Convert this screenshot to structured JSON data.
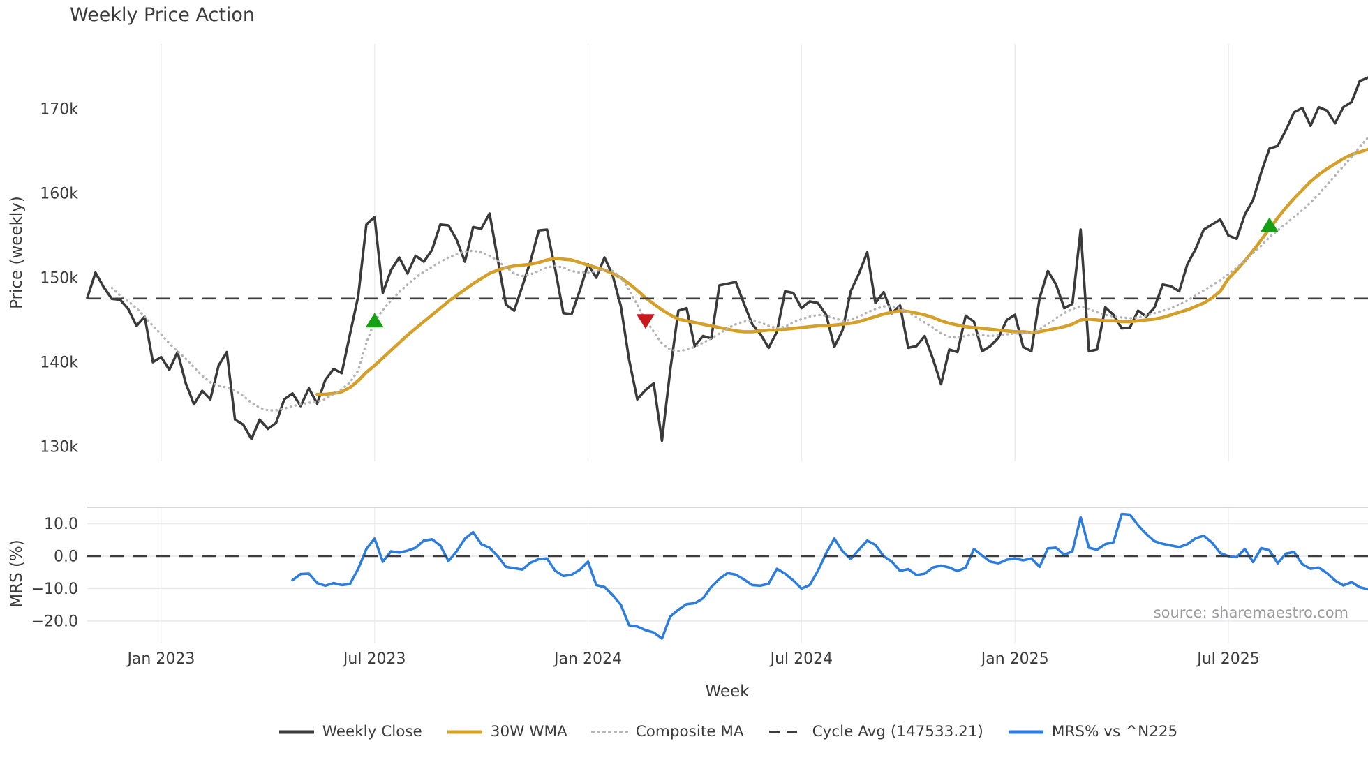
{
  "title": "Weekly Price Action",
  "source_note": "source: sharemaestro.com",
  "axes": {
    "price_label": "Price (weekly)",
    "mrs_label": "MRS (%)",
    "x_label": "Week",
    "price_tick_labels": [
      "170k",
      "160k",
      "150k",
      "140k",
      "130k"
    ],
    "price_tick_values": [
      170000,
      160000,
      150000,
      140000,
      130000
    ],
    "mrs_tick_labels": [
      "10.0",
      "0.0",
      "−10.0",
      "−20.0"
    ],
    "mrs_tick_values": [
      10,
      0,
      -10,
      -20
    ],
    "x_tick_labels": [
      "Jan 2023",
      "Jul 2023",
      "Jan 2024",
      "Jul 2024",
      "Jan 2025",
      "Jul 2025"
    ],
    "x_tick_week_indices": [
      9,
      35,
      61,
      87,
      113,
      139
    ]
  },
  "legend": [
    {
      "label": "Weekly Close",
      "color": "#3a3a3a",
      "style": "solid"
    },
    {
      "label": "30W WMA",
      "color": "#d4a02a",
      "style": "solid"
    },
    {
      "label": "Composite MA",
      "color": "#b4b4b4",
      "style": "dotted"
    },
    {
      "label": "Cycle Avg (147533.21)",
      "color": "#3d3d3d",
      "style": "dashed"
    },
    {
      "label": "MRS% vs ^N225",
      "color": "#2d7dde",
      "style": "solid"
    }
  ],
  "colors": {
    "weekly_close": "#3a3a3a",
    "wma30": "#d4a02a",
    "composite": "#b4b4b4",
    "cycle_avg": "#3d3d3d",
    "mrs": "#2d7dde",
    "buy_marker": "#16a016",
    "sell_marker": "#c8191c",
    "gridline": "#ededf2",
    "mrs_hgrid": "#e9e9ee",
    "mrs_top_border": "#c8c8cc",
    "tick_text": "#3b3b3b"
  },
  "chart_data": {
    "type": "line",
    "title": "Weekly Price Action",
    "xlabel": "Week",
    "x_unit": "week",
    "x_start_date": "2022-10-31",
    "x_step_days": 7,
    "n_weeks": 157,
    "x_tick_week_indices": [
      9,
      35,
      61,
      87,
      113,
      139
    ],
    "x_tick_labels": [
      "Jan 2023",
      "Jul 2023",
      "Jan 2024",
      "Jul 2024",
      "Jan 2025",
      "Jul 2025"
    ],
    "panels": [
      {
        "id": "price",
        "ylabel": "Price (weekly)",
        "ylim": [
          128300,
          177700
        ],
        "yticks": [
          130000,
          140000,
          150000,
          160000,
          170000
        ],
        "grid": "vertical-only"
      },
      {
        "id": "mrs",
        "ylabel": "MRS (%)",
        "ylim": [
          -27,
          15
        ],
        "yticks": [
          -20,
          -10,
          0,
          10
        ],
        "grid": "horizontal-and-vertical"
      }
    ],
    "series": [
      {
        "name": "Weekly Close",
        "panel": "price",
        "style": "solid",
        "color": "#3a3a3a",
        "start_index": 0,
        "values": [
          147600,
          150600,
          148900,
          147500,
          147400,
          146300,
          144300,
          145400,
          140000,
          140600,
          139100,
          141200,
          137500,
          135000,
          136600,
          135600,
          139600,
          141200,
          133200,
          132600,
          130900,
          133200,
          132100,
          132800,
          135600,
          136300,
          134800,
          136900,
          135100,
          137900,
          139200,
          138700,
          143300,
          147800,
          156300,
          157200,
          148200,
          150900,
          152400,
          150500,
          152600,
          151900,
          153300,
          156300,
          156200,
          154500,
          151900,
          156000,
          155800,
          157600,
          152200,
          146800,
          146100,
          149000,
          152000,
          155600,
          155700,
          151000,
          145800,
          145700,
          148500,
          151600,
          150000,
          152400,
          150300,
          146600,
          140300,
          135600,
          136700,
          137500,
          130700,
          139000,
          146100,
          146400,
          141900,
          143100,
          142800,
          149100,
          149300,
          149500,
          146900,
          144500,
          143300,
          141700,
          143600,
          148400,
          148200,
          146400,
          147200,
          147000,
          145600,
          141800,
          143800,
          148400,
          150500,
          153000,
          147000,
          148300,
          145800,
          146700,
          141700,
          141900,
          143100,
          140400,
          137400,
          141500,
          141200,
          145500,
          144800,
          141300,
          141900,
          142900,
          145000,
          145600,
          141800,
          141300,
          147600,
          150800,
          149200,
          146400,
          146900,
          155700,
          141300,
          141500,
          146500,
          145600,
          144000,
          144100,
          146100,
          145400,
          146500,
          149200,
          149000,
          148400,
          151600,
          153400,
          155700,
          156300,
          156900,
          155000,
          154600,
          157500,
          159200,
          162500,
          165300,
          165600,
          167500,
          169600,
          170100,
          168000,
          170200,
          169800,
          168300,
          170200,
          170800,
          173300,
          173700
        ]
      },
      {
        "name": "30W WMA",
        "panel": "price",
        "style": "solid",
        "color": "#d4a02a",
        "start_index": 28,
        "values": [
          136200,
          136200,
          136300,
          136500,
          137000,
          137800,
          138800,
          139600,
          140500,
          141400,
          142300,
          143200,
          144000,
          144800,
          145600,
          146400,
          147200,
          147900,
          148600,
          149300,
          149900,
          150500,
          150900,
          151200,
          151400,
          151500,
          151600,
          151800,
          152100,
          152300,
          152200,
          152100,
          151800,
          151500,
          151200,
          150900,
          150500,
          150000,
          149300,
          148500,
          147600,
          146900,
          146200,
          145600,
          145100,
          144900,
          144700,
          144500,
          144300,
          144100,
          143900,
          143700,
          143600,
          143600,
          143700,
          143800,
          143800,
          143900,
          144000,
          144100,
          144200,
          144300,
          144300,
          144400,
          144500,
          144600,
          144800,
          145100,
          145400,
          145700,
          145900,
          146100,
          146000,
          145800,
          145600,
          145300,
          144900,
          144600,
          144400,
          144200,
          144100,
          144000,
          143900,
          143800,
          143700,
          143600,
          143600,
          143500,
          143600,
          143800,
          144000,
          144200,
          144500,
          145000,
          145100,
          145000,
          144900,
          144900,
          144800,
          144800,
          144900,
          145000,
          145100,
          145300,
          145600,
          145900,
          146200,
          146600,
          147000,
          147600,
          148400,
          149900,
          150900,
          152000,
          153200,
          154500,
          155800,
          157100,
          158300,
          159400,
          160400,
          161400,
          162200,
          162900,
          163500,
          164100,
          164600,
          164900,
          165200
        ]
      },
      {
        "name": "Composite MA",
        "panel": "price",
        "style": "dotted",
        "color": "#b4b4b4",
        "start_index": 3,
        "values": [
          148800,
          147900,
          147200,
          146400,
          145400,
          144300,
          143300,
          142200,
          141300,
          140400,
          139400,
          138400,
          137600,
          137200,
          137000,
          136600,
          136000,
          135200,
          134600,
          134300,
          134300,
          134500,
          134800,
          135000,
          135200,
          135300,
          135600,
          136200,
          136800,
          137600,
          139000,
          142300,
          144800,
          146200,
          147300,
          148300,
          149200,
          150000,
          150700,
          151300,
          151900,
          152400,
          152800,
          153100,
          153200,
          153000,
          152600,
          152000,
          151200,
          150500,
          150200,
          150400,
          150800,
          151200,
          151400,
          151200,
          150800,
          150600,
          150600,
          150800,
          151000,
          150800,
          150000,
          148600,
          146800,
          145000,
          143600,
          142200,
          141500,
          141300,
          141500,
          141800,
          142300,
          142800,
          143400,
          144000,
          144500,
          144800,
          144900,
          144700,
          144300,
          144000,
          144200,
          144700,
          145100,
          145400,
          145600,
          145500,
          145200,
          144900,
          145000,
          145400,
          145900,
          146300,
          146600,
          146600,
          146400,
          145900,
          145300,
          144700,
          144100,
          143400,
          143000,
          142900,
          143100,
          143300,
          143200,
          143100,
          143200,
          143300,
          143400,
          143400,
          143500,
          143900,
          144500,
          145200,
          145800,
          146300,
          146600,
          146300,
          145900,
          145600,
          145400,
          145300,
          145200,
          145300,
          145500,
          145800,
          146100,
          146400,
          146800,
          147300,
          147900,
          148500,
          149100,
          149700,
          150400,
          151200,
          152000,
          152900,
          153800,
          154800,
          155600,
          156400,
          157200,
          158000,
          158900,
          159900,
          161000,
          162100,
          163200,
          164300,
          165500,
          166600
        ]
      },
      {
        "name": "Cycle Avg (147533.21)",
        "panel": "price",
        "style": "dashed",
        "color": "#3d3d3d",
        "constant_value": 147533.21
      },
      {
        "name": "MRS% vs ^N225",
        "panel": "mrs",
        "style": "solid",
        "color": "#2d7dde",
        "start_index": 25,
        "values": [
          -7.4,
          -5.5,
          -5.4,
          -8.3,
          -9.1,
          -8.3,
          -8.9,
          -8.6,
          -3.9,
          2.2,
          5.4,
          -1.7,
          1.5,
          1.1,
          1.7,
          2.6,
          4.8,
          5.2,
          3.3,
          -1.5,
          1.5,
          5.4,
          7.4,
          3.7,
          2.6,
          0.0,
          -3.3,
          -3.7,
          -4.1,
          -2.0,
          -0.9,
          -0.7,
          -4.5,
          -6.1,
          -5.7,
          -4.2,
          -1.7,
          -8.9,
          -9.5,
          -12.0,
          -15.0,
          -21.3,
          -21.7,
          -22.8,
          -23.5,
          -25.4,
          -18.6,
          -16.5,
          -14.8,
          -14.5,
          -13.0,
          -9.5,
          -7.0,
          -5.2,
          -5.7,
          -7.2,
          -8.9,
          -9.1,
          -8.5,
          -3.9,
          -5.4,
          -7.5,
          -10.0,
          -8.9,
          -4.5,
          0.9,
          5.4,
          1.5,
          -0.9,
          2.0,
          4.8,
          3.5,
          0.0,
          -1.7,
          -4.5,
          -4.0,
          -5.8,
          -5.4,
          -3.5,
          -2.9,
          -3.5,
          -4.6,
          -3.5,
          2.2,
          0.2,
          -1.7,
          -2.2,
          -1.1,
          -0.7,
          -1.3,
          -0.7,
          -3.3,
          2.4,
          2.6,
          0.4,
          1.5,
          12.0,
          2.6,
          2.0,
          3.7,
          4.3,
          13.0,
          12.8,
          9.5,
          6.8,
          4.6,
          3.8,
          3.3,
          2.8,
          3.7,
          5.5,
          6.3,
          4.2,
          1.0,
          0.0,
          -0.3,
          2.2,
          -1.8,
          2.5,
          1.8,
          -2.2,
          0.8,
          1.3,
          -2.5,
          -3.9,
          -3.5,
          -5.2,
          -7.5,
          -9.0,
          -8.0,
          -9.6,
          -10.2
        ]
      },
      {
        "name": "Zero line",
        "panel": "mrs",
        "style": "dashed",
        "color": "#3d3d3d",
        "constant_value": 0
      }
    ],
    "markers": [
      {
        "type": "buy",
        "shape": "triangle-up",
        "color": "#16a016",
        "week_index": 35,
        "price": 144900
      },
      {
        "type": "sell",
        "shape": "triangle-down",
        "color": "#c8191c",
        "week_index": 68,
        "price": 144900
      },
      {
        "type": "buy",
        "shape": "triangle-up",
        "color": "#16a016",
        "week_index": 144,
        "price": 156200
      }
    ]
  }
}
